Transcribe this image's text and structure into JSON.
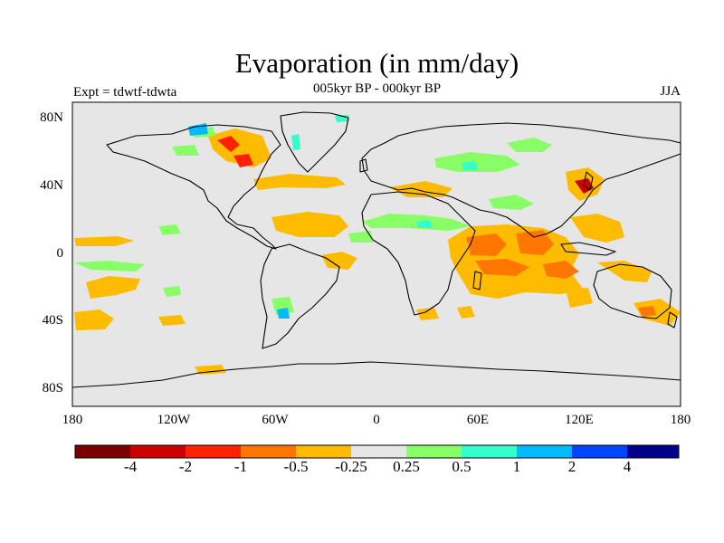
{
  "title": "Evaporation (in mm/day)",
  "subtitle": "005kyr BP - 000kyr BP",
  "left_label": "Expt = tdwtf-tdwta",
  "right_label": "JJA",
  "lat_labels": [
    "80N",
    "40N",
    "0",
    "40S",
    "80S"
  ],
  "lon_labels": [
    "180",
    "120W",
    "60W",
    "0",
    "60E",
    "120E",
    "180"
  ],
  "colorbar": {
    "colors": [
      "#7a0000",
      "#cc0000",
      "#ff2200",
      "#ff7700",
      "#ffbb00",
      "#e6e6e6",
      "#88ff66",
      "#33ffcc",
      "#00bbff",
      "#0044ff",
      "#000088"
    ],
    "labels": [
      "-4",
      "-2",
      "-1",
      "-0.5",
      "-0.25",
      "0.25",
      "0.5",
      "1",
      "2",
      "4"
    ]
  },
  "palette": {
    "missing": "#e6e6e6",
    "dark_red": "#7a0000",
    "red": "#cc0000",
    "orange_red": "#ff2200",
    "orange": "#ff7700",
    "light_orange": "#ffbb00",
    "light_green": "#88ff66",
    "cyan": "#33ffcc",
    "light_blue": "#00bbff"
  }
}
